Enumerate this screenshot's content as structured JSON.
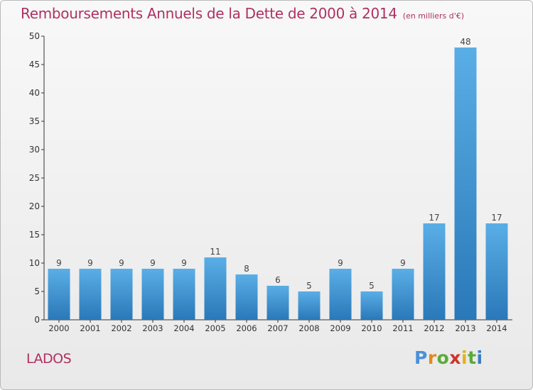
{
  "header": {
    "title": "Remboursements Annuels de la Dette de 2000 à 2014",
    "unit": "(en milliers d'€)"
  },
  "footer": {
    "commune": "LADOS",
    "logo": "Proxiti"
  },
  "colors": {
    "title": "#b03060",
    "bar_top": "#5aaee6",
    "bar_bottom": "#2a78b8",
    "axis": "#333333"
  },
  "chart_data": {
    "type": "bar",
    "title": "Remboursements Annuels de la Dette de 2000 à 2014",
    "subtitle": "(en milliers d'€)",
    "xlabel": "",
    "ylabel": "",
    "categories": [
      "2000",
      "2001",
      "2002",
      "2003",
      "2004",
      "2005",
      "2006",
      "2007",
      "2008",
      "2009",
      "2010",
      "2011",
      "2012",
      "2013",
      "2014"
    ],
    "values": [
      9,
      9,
      9,
      9,
      9,
      11,
      8,
      6,
      5,
      9,
      5,
      9,
      17,
      48,
      17
    ],
    "ylim": [
      0,
      50
    ],
    "yticks": [
      0,
      5,
      10,
      15,
      20,
      25,
      30,
      35,
      40,
      45,
      50
    ],
    "grid": false,
    "data_labels": true
  }
}
